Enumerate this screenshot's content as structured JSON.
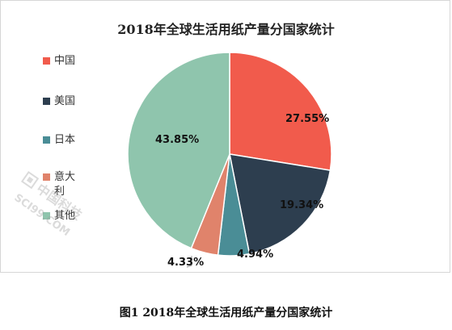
{
  "chart_data": {
    "type": "pie",
    "title": "2018年全球生活用纸产量分国家统计",
    "slices": [
      {
        "name": "中国",
        "value": 27.55,
        "label": "27.55%",
        "color": "#f15b4c"
      },
      {
        "name": "美国",
        "value": 19.34,
        "label": "19.34%",
        "color": "#2d3e4f"
      },
      {
        "name": "日本",
        "value": 4.94,
        "label": "4.94%",
        "color": "#4a8d96"
      },
      {
        "name": "意大利",
        "value": 4.33,
        "label": "4.33%",
        "color": "#e0836b"
      },
      {
        "name": "其他",
        "value": 43.85,
        "label": "43.85%",
        "color": "#8fc5ad"
      }
    ],
    "legend_placement": "left"
  },
  "caption": "图1  2018年全球生活用纸产量分国家统计",
  "watermark": {
    "line1": "中国科技",
    "line2": "SCI99.COM"
  }
}
